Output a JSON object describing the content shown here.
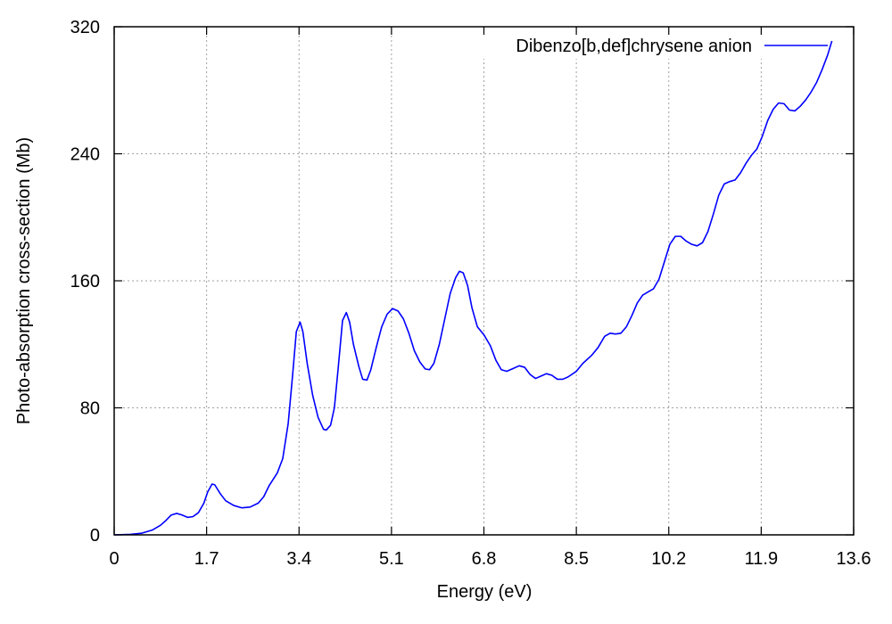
{
  "chart_data": {
    "type": "line",
    "xlabel": "Energy (eV)",
    "ylabel": "Photo-absorption cross-section (Mb)",
    "xlim": [
      0,
      13.6
    ],
    "ylim": [
      0,
      320
    ],
    "x_ticks": [
      0,
      1.7,
      3.4,
      5.1,
      6.8,
      8.5,
      10.2,
      11.9,
      13.6
    ],
    "x_tick_labels": [
      "0",
      "1.7",
      "3.4",
      "5.1",
      "6.8",
      "8.5",
      "10.2",
      "11.9",
      "13.6"
    ],
    "y_ticks": [
      0,
      80,
      160,
      240,
      320
    ],
    "y_tick_labels": [
      "0",
      "80",
      "160",
      "240",
      "320"
    ],
    "grid": true,
    "legend_position": "top-right",
    "series": [
      {
        "name": "Dibenzo[b,def]chrysene anion",
        "color": "#0000ff",
        "points": [
          [
            0.0,
            0
          ],
          [
            0.3,
            0.3
          ],
          [
            0.5,
            1
          ],
          [
            0.7,
            3
          ],
          [
            0.85,
            6
          ],
          [
            0.95,
            9
          ],
          [
            1.05,
            12.5
          ],
          [
            1.15,
            13.5
          ],
          [
            1.25,
            12.5
          ],
          [
            1.35,
            11
          ],
          [
            1.45,
            11.5
          ],
          [
            1.55,
            14
          ],
          [
            1.65,
            20
          ],
          [
            1.72,
            27
          ],
          [
            1.8,
            32
          ],
          [
            1.85,
            31.5
          ],
          [
            1.95,
            26
          ],
          [
            2.05,
            21.5
          ],
          [
            2.2,
            18.5
          ],
          [
            2.35,
            17
          ],
          [
            2.5,
            17.5
          ],
          [
            2.65,
            20
          ],
          [
            2.75,
            24
          ],
          [
            2.85,
            31
          ],
          [
            3.0,
            39
          ],
          [
            3.1,
            48
          ],
          [
            3.2,
            70
          ],
          [
            3.28,
            100
          ],
          [
            3.35,
            128
          ],
          [
            3.42,
            134
          ],
          [
            3.47,
            128
          ],
          [
            3.55,
            108
          ],
          [
            3.65,
            88
          ],
          [
            3.75,
            74
          ],
          [
            3.85,
            66.5
          ],
          [
            3.9,
            66
          ],
          [
            3.98,
            69
          ],
          [
            4.05,
            80
          ],
          [
            4.12,
            105
          ],
          [
            4.2,
            135
          ],
          [
            4.27,
            140
          ],
          [
            4.33,
            134
          ],
          [
            4.4,
            120
          ],
          [
            4.5,
            106
          ],
          [
            4.57,
            98
          ],
          [
            4.65,
            97.5
          ],
          [
            4.72,
            104
          ],
          [
            4.82,
            118
          ],
          [
            4.92,
            131
          ],
          [
            5.02,
            139
          ],
          [
            5.12,
            142.5
          ],
          [
            5.22,
            141
          ],
          [
            5.32,
            136
          ],
          [
            5.42,
            127
          ],
          [
            5.52,
            116
          ],
          [
            5.62,
            109
          ],
          [
            5.72,
            104.5
          ],
          [
            5.8,
            104
          ],
          [
            5.88,
            108
          ],
          [
            5.98,
            120
          ],
          [
            6.08,
            136
          ],
          [
            6.18,
            152
          ],
          [
            6.28,
            162
          ],
          [
            6.35,
            166
          ],
          [
            6.42,
            165
          ],
          [
            6.5,
            157
          ],
          [
            6.58,
            143
          ],
          [
            6.68,
            131
          ],
          [
            6.8,
            126
          ],
          [
            6.92,
            119
          ],
          [
            7.02,
            110
          ],
          [
            7.12,
            104
          ],
          [
            7.22,
            103
          ],
          [
            7.32,
            104.5
          ],
          [
            7.45,
            106.5
          ],
          [
            7.55,
            105.5
          ],
          [
            7.65,
            101
          ],
          [
            7.75,
            98.5
          ],
          [
            7.85,
            100
          ],
          [
            7.95,
            101.5
          ],
          [
            8.05,
            100.5
          ],
          [
            8.15,
            98
          ],
          [
            8.25,
            98
          ],
          [
            8.35,
            99.5
          ],
          [
            8.5,
            103
          ],
          [
            8.62,
            108
          ],
          [
            8.78,
            113
          ],
          [
            8.9,
            118
          ],
          [
            9.02,
            125
          ],
          [
            9.12,
            127
          ],
          [
            9.22,
            126.5
          ],
          [
            9.32,
            127
          ],
          [
            9.42,
            131
          ],
          [
            9.52,
            138
          ],
          [
            9.62,
            146
          ],
          [
            9.72,
            151
          ],
          [
            9.82,
            153
          ],
          [
            9.92,
            155
          ],
          [
            10.02,
            161
          ],
          [
            10.12,
            172
          ],
          [
            10.22,
            183
          ],
          [
            10.32,
            188
          ],
          [
            10.42,
            188
          ],
          [
            10.52,
            185
          ],
          [
            10.62,
            183
          ],
          [
            10.72,
            182
          ],
          [
            10.82,
            184
          ],
          [
            10.92,
            191
          ],
          [
            11.02,
            202
          ],
          [
            11.12,
            214
          ],
          [
            11.22,
            221
          ],
          [
            11.32,
            222.5
          ],
          [
            11.42,
            223.5
          ],
          [
            11.52,
            228
          ],
          [
            11.62,
            234
          ],
          [
            11.72,
            239
          ],
          [
            11.82,
            243
          ],
          [
            11.92,
            251
          ],
          [
            12.02,
            261
          ],
          [
            12.12,
            268
          ],
          [
            12.22,
            272
          ],
          [
            12.32,
            271.5
          ],
          [
            12.42,
            267.5
          ],
          [
            12.52,
            267
          ],
          [
            12.62,
            270
          ],
          [
            12.72,
            274
          ],
          [
            12.82,
            279
          ],
          [
            12.92,
            285
          ],
          [
            13.02,
            293
          ],
          [
            13.12,
            302
          ],
          [
            13.2,
            311
          ]
        ]
      }
    ]
  }
}
